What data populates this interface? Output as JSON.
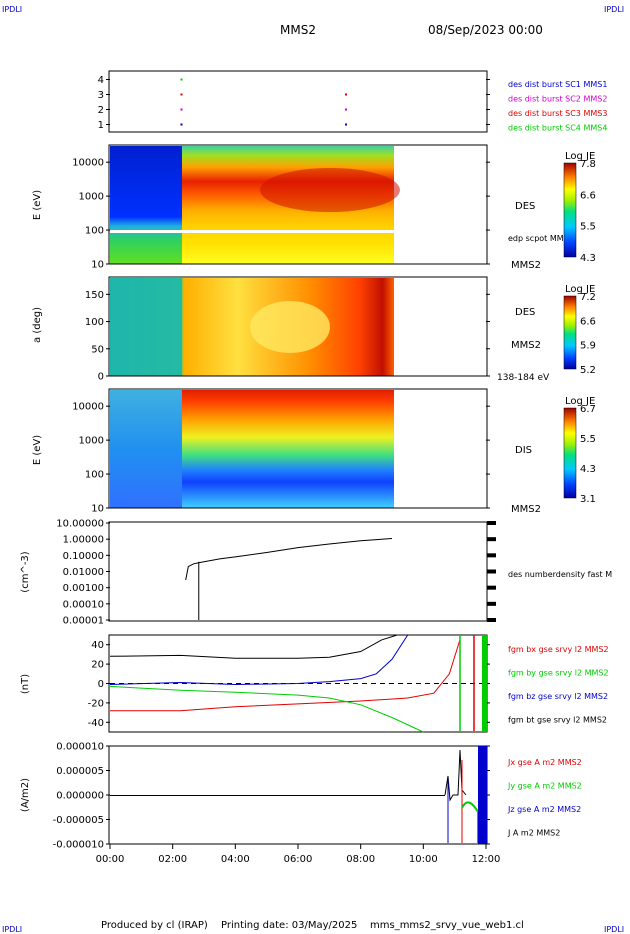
{
  "header": {
    "corner_left": "IPDLI",
    "corner_right": "IPDLI",
    "spacecraft": "MMS2",
    "date": "08/Sep/2023 00:00"
  },
  "footer": {
    "produced": "Produced by cl (IRAP)",
    "printing": "Printing date: 03/May/2025",
    "script": "mms_mms2_srvy_vue_web1.cl",
    "corner_left": "IPDLI",
    "corner_right": "IPDLI"
  },
  "colors": {
    "red": "#e00000",
    "green": "#00cc00",
    "blue": "#0000cc",
    "magenta": "#d000d0",
    "black": "#000000"
  },
  "chart_data": [
    {
      "type": "scatter",
      "panel": "data-availability",
      "ylim": [
        0.5,
        4.5
      ],
      "yticks": [
        "1",
        "2",
        "3",
        "4"
      ],
      "series": [
        {
          "name": "des dist burst SC1 MMS1",
          "color": "#0000cc",
          "x": [
            "02:15",
            "07:30"
          ],
          "y": [
            1,
            1
          ]
        },
        {
          "name": "des dist burst SC2 MMS2",
          "color": "#d000d0",
          "x": [
            "02:15",
            "07:30"
          ],
          "y": [
            2,
            2
          ]
        },
        {
          "name": "des dist burst SC3 MMS3",
          "color": "#e00000",
          "x": [
            "02:15",
            "07:30"
          ],
          "y": [
            3,
            3
          ]
        },
        {
          "name": "des dist burst SC4 MMS4",
          "color": "#00cc00",
          "x": [
            "02:15"
          ],
          "y": [
            4
          ]
        }
      ]
    },
    {
      "type": "heatmap",
      "panel": "des-energy",
      "ylabel": "E (eV)",
      "yscale": "log",
      "ylim": [
        10,
        30000
      ],
      "yticks": [
        "10",
        "100",
        "1000",
        "10000"
      ],
      "instrument": "DES",
      "spacecraft": "MMS2",
      "colorbar": {
        "label": "Log JE",
        "ticks": [
          "4.3",
          "5.5",
          "6.6",
          "7.8"
        ]
      },
      "overlay": "edp scpot MMS2",
      "data_end": "09:00"
    },
    {
      "type": "heatmap",
      "panel": "des-pitch-angle",
      "ylabel": "a (deg)",
      "ylim": [
        0,
        180
      ],
      "yticks": [
        "0",
        "50",
        "100",
        "150"
      ],
      "instrument": "DES",
      "spacecraft": "MMS2",
      "energy_range": "138-184 eV",
      "colorbar": {
        "label": "Log JE",
        "ticks": [
          "5.2",
          "5.9",
          "6.6",
          "7.2"
        ]
      },
      "data_end": "09:00"
    },
    {
      "type": "heatmap",
      "panel": "dis-energy",
      "ylabel": "E (eV)",
      "yscale": "log",
      "ylim": [
        10,
        30000
      ],
      "yticks": [
        "10",
        "100",
        "1000",
        "10000"
      ],
      "instrument": "DIS",
      "spacecraft": "MMS2",
      "colorbar": {
        "label": "Log JE",
        "ticks": [
          "3.1",
          "4.3",
          "5.5",
          "6.7"
        ]
      },
      "data_end": "09:00"
    },
    {
      "type": "line",
      "panel": "density",
      "ylabel": "(cm^-3)",
      "yscale": "log",
      "ylim": [
        1e-05,
        10
      ],
      "yticks": [
        "0.00001",
        "0.00010",
        "0.00100",
        "0.01000",
        "0.10000",
        "1.00000",
        "10.00000"
      ],
      "series": [
        {
          "name": "des numberdensity fast M",
          "color": "#000000",
          "x": [
            "02:25",
            "02:30",
            "02:40",
            "02:50",
            "03:00",
            "03:30",
            "04:00",
            "05:00",
            "06:00",
            "07:00",
            "08:00",
            "09:00"
          ],
          "y": [
            0.003,
            0.02,
            0.03,
            0.035,
            0.04,
            0.06,
            0.08,
            0.15,
            0.3,
            0.5,
            0.8,
            1.1
          ]
        }
      ]
    },
    {
      "type": "line",
      "panel": "fgm",
      "ylabel": "(nT)",
      "ylim": [
        -50,
        50
      ],
      "yticks": [
        "-40",
        "-20",
        "0",
        "20",
        "40"
      ],
      "series": [
        {
          "name": "fgm bx gse srvy l2 MMS2",
          "color": "#e00000",
          "x": [
            "00:00",
            "02:15",
            "04:00",
            "06:00",
            "08:00",
            "09:30",
            "10:20",
            "10:50",
            "11:10"
          ],
          "y": [
            -28,
            -28,
            -24,
            -21,
            -18,
            -15,
            -10,
            10,
            45
          ]
        },
        {
          "name": "fgm by gse srvy l2 MMS2",
          "color": "#00cc00",
          "x": [
            "00:00",
            "02:15",
            "04:00",
            "06:00",
            "07:00",
            "08:00",
            "09:00",
            "10:00"
          ],
          "y": [
            -3,
            -7,
            -9,
            -12,
            -15,
            -22,
            -35,
            -50
          ]
        },
        {
          "name": "fgm bz gse srvy l2 MMS2",
          "color": "#0000cc",
          "x": [
            "00:00",
            "02:15",
            "04:00",
            "06:00",
            "07:00",
            "08:00",
            "08:30",
            "09:00",
            "09:30"
          ],
          "y": [
            -1,
            1,
            -1,
            0,
            2,
            5,
            10,
            25,
            50
          ]
        },
        {
          "name": "fgm bt gse srvy l2 MMS2",
          "color": "#000000",
          "x": [
            "00:00",
            "02:15",
            "04:00",
            "06:00",
            "07:00",
            "08:00",
            "08:40",
            "09:10",
            "09:30"
          ],
          "y": [
            28,
            29,
            26,
            26,
            27,
            33,
            45,
            55,
            60
          ]
        }
      ]
    },
    {
      "type": "line",
      "panel": "current-density",
      "ylabel": "(A/m2)",
      "ylim": [
        -1e-05,
        1e-05
      ],
      "yticks": [
        "-0.000010",
        "-0.000005",
        "0.000000",
        "0.000005",
        "0.000010"
      ],
      "series": [
        {
          "name": "Jx gse A m2 MMS2",
          "color": "#e00000"
        },
        {
          "name": "Jy gse A m2 MMS2",
          "color": "#00cc00"
        },
        {
          "name": "Jz gse A m2 MMS2",
          "color": "#0000cc"
        },
        {
          "name": "J A m2 MMS2",
          "color": "#000000"
        }
      ]
    }
  ],
  "xaxis": {
    "ticks": [
      "00:00",
      "02:00",
      "04:00",
      "06:00",
      "08:00",
      "10:00",
      "12:00"
    ],
    "range_hours": [
      0,
      12
    ]
  }
}
